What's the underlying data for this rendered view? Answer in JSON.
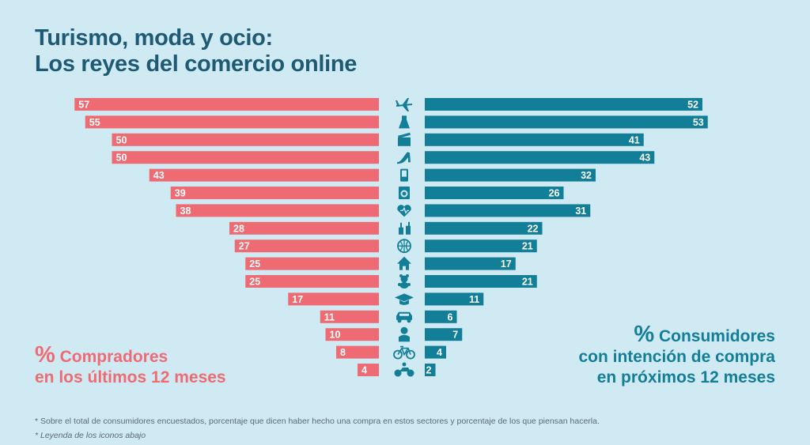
{
  "title_lines": [
    "Turismo, moda y ocio:",
    "Los reyes del comercio online"
  ],
  "legend_left": {
    "symbol": "%",
    "line1": "Compradores",
    "line2": "en los últimos 12 meses"
  },
  "legend_right": {
    "symbol": "%",
    "line1": "Consumidores",
    "line2": "con intención de compra",
    "line3": "en próximos 12 meses"
  },
  "footnotes": [
    "* Sobre el total de consumidores encuestados, porcentaje que dicen haber hecho una compra en estos sectores y porcentaje de los que piensan hacerla.",
    "* Leyenda de los iconos abajo"
  ],
  "colors": {
    "left": "#ef6b73",
    "right": "#137e98",
    "icon": "#137e98",
    "title": "#1f5a75",
    "background": "#cfeaf3"
  },
  "chart_data": {
    "type": "bar",
    "orientation": "horizontal-butterfly",
    "categories": [
      "plane-icon",
      "dress-icon",
      "clapperboard-icon",
      "high-heel-icon",
      "mobile-phone-icon",
      "washing-machine-icon",
      "heart-icon",
      "bottles-icon",
      "basketball-icon",
      "house-icon",
      "teddy-bear-icon",
      "graduation-cap-icon",
      "car-icon",
      "baby-icon",
      "bicycle-icon",
      "motorcycle-icon"
    ],
    "series": [
      {
        "name": "Compradores en los últimos 12 meses",
        "values": [
          57,
          55,
          50,
          50,
          43,
          39,
          38,
          28,
          27,
          25,
          25,
          17,
          11,
          10,
          8,
          4
        ]
      },
      {
        "name": "Consumidores con intención de compra en próximos 12 meses",
        "values": [
          52,
          53,
          41,
          43,
          32,
          26,
          31,
          22,
          21,
          17,
          21,
          11,
          6,
          7,
          4,
          2
        ]
      }
    ],
    "unit": "%"
  }
}
